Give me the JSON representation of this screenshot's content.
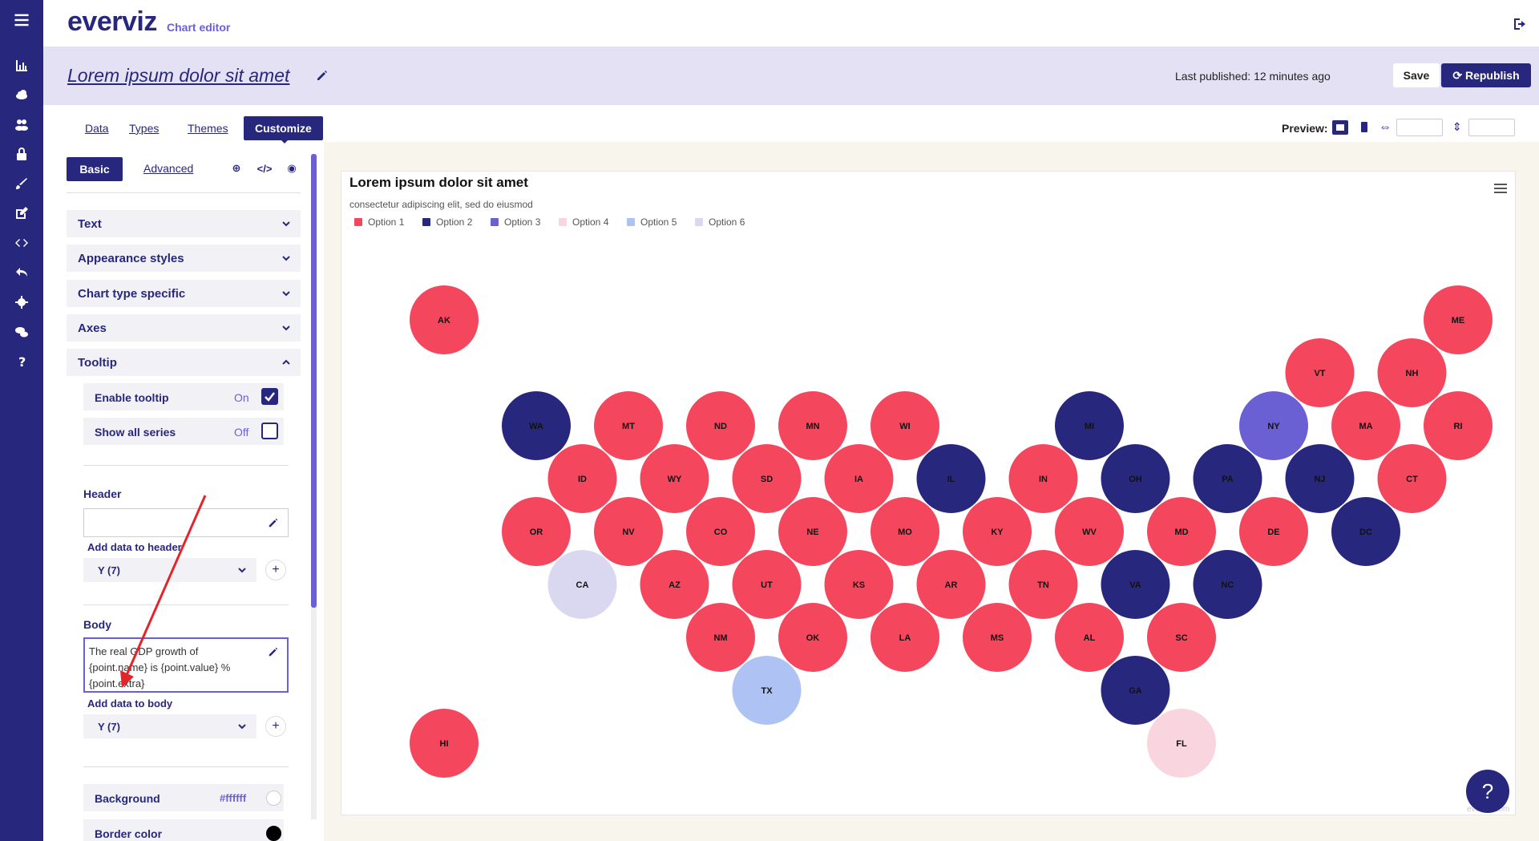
{
  "app": {
    "logo": "everviz",
    "logo_sub": "Chart editor"
  },
  "rail": {
    "icons": [
      "menu-icon",
      "chart-icon",
      "cloud-icon",
      "users-icon",
      "lock-icon",
      "brush-icon",
      "edit-icon",
      "code-icon",
      "undo-icon",
      "gear-icon",
      "chat-icon",
      "question-icon"
    ]
  },
  "titlebar": {
    "title": "Lorem ipsum dolor sit amet",
    "last_published": "Last published: 12 minutes ago",
    "save": "Save",
    "republish": "Republish"
  },
  "tabs": [
    "Data",
    "Types",
    "Themes",
    "Customize"
  ],
  "preview": {
    "label": "Preview:"
  },
  "panel": {
    "basic": "Basic",
    "advanced": "Advanced",
    "sections": [
      "Text",
      "Appearance styles",
      "Chart type specific",
      "Axes",
      "Tooltip"
    ],
    "enable_tooltip": {
      "label": "Enable tooltip",
      "state": "On"
    },
    "show_all_series": {
      "label": "Show all series",
      "state": "Off"
    },
    "header_label": "Header",
    "add_data_header": "Add data to header",
    "header_select": "Y (7)",
    "body_label": "Body",
    "body_text": "The real GDP growth of {point.name} is {point.value} % {point.extra}",
    "add_data_body": "Add data to body",
    "body_select": "Y (7)",
    "background": {
      "label": "Background",
      "value": "#ffffff"
    },
    "border_color": {
      "label": "Border color"
    }
  },
  "chart_data": {
    "type": "tilemap",
    "title": "Lorem ipsum dolor sit amet",
    "subtitle": "consectetur adipiscing elit, sed do eiusmod",
    "legend": [
      {
        "name": "Option 1",
        "color": "#f4475e"
      },
      {
        "name": "Option 2",
        "color": "#28277e"
      },
      {
        "name": "Option 3",
        "color": "#6b5fd4"
      },
      {
        "name": "Option 4",
        "color": "#f9d5e0"
      },
      {
        "name": "Option 5",
        "color": "#aec3f4"
      },
      {
        "name": "Option 6",
        "color": "#dad8f0"
      }
    ],
    "credit": "everviz.com",
    "tiles": [
      {
        "s": "AK",
        "col": 0,
        "row": 0,
        "o": 1
      },
      {
        "s": "ME",
        "col": 22,
        "row": 0,
        "o": 1
      },
      {
        "s": "VT",
        "col": 19,
        "row": 1,
        "o": 1
      },
      {
        "s": "NH",
        "col": 21,
        "row": 1,
        "o": 1
      },
      {
        "s": "WA",
        "col": 2,
        "row": 2,
        "o": 2
      },
      {
        "s": "MT",
        "col": 4,
        "row": 2,
        "o": 1
      },
      {
        "s": "ND",
        "col": 6,
        "row": 2,
        "o": 1
      },
      {
        "s": "MN",
        "col": 8,
        "row": 2,
        "o": 1
      },
      {
        "s": "WI",
        "col": 10,
        "row": 2,
        "o": 1
      },
      {
        "s": "MI",
        "col": 14,
        "row": 2,
        "o": 2
      },
      {
        "s": "NY",
        "col": 18,
        "row": 2,
        "o": 3
      },
      {
        "s": "MA",
        "col": 20,
        "row": 2,
        "o": 1
      },
      {
        "s": "RI",
        "col": 22,
        "row": 2,
        "o": 1
      },
      {
        "s": "ID",
        "col": 3,
        "row": 3,
        "o": 1
      },
      {
        "s": "WY",
        "col": 5,
        "row": 3,
        "o": 1
      },
      {
        "s": "SD",
        "col": 7,
        "row": 3,
        "o": 1
      },
      {
        "s": "IA",
        "col": 9,
        "row": 3,
        "o": 1
      },
      {
        "s": "IL",
        "col": 11,
        "row": 3,
        "o": 2
      },
      {
        "s": "IN",
        "col": 13,
        "row": 3,
        "o": 1
      },
      {
        "s": "OH",
        "col": 15,
        "row": 3,
        "o": 2
      },
      {
        "s": "PA",
        "col": 17,
        "row": 3,
        "o": 2
      },
      {
        "s": "NJ",
        "col": 19,
        "row": 3,
        "o": 2
      },
      {
        "s": "CT",
        "col": 21,
        "row": 3,
        "o": 1
      },
      {
        "s": "OR",
        "col": 2,
        "row": 4,
        "o": 1
      },
      {
        "s": "NV",
        "col": 4,
        "row": 4,
        "o": 1
      },
      {
        "s": "CO",
        "col": 6,
        "row": 4,
        "o": 1
      },
      {
        "s": "NE",
        "col": 8,
        "row": 4,
        "o": 1
      },
      {
        "s": "MO",
        "col": 10,
        "row": 4,
        "o": 1
      },
      {
        "s": "KY",
        "col": 12,
        "row": 4,
        "o": 1
      },
      {
        "s": "WV",
        "col": 14,
        "row": 4,
        "o": 1
      },
      {
        "s": "MD",
        "col": 16,
        "row": 4,
        "o": 1
      },
      {
        "s": "DE",
        "col": 18,
        "row": 4,
        "o": 1
      },
      {
        "s": "DC",
        "col": 20,
        "row": 4,
        "o": 2
      },
      {
        "s": "CA",
        "col": 3,
        "row": 5,
        "o": 6
      },
      {
        "s": "AZ",
        "col": 5,
        "row": 5,
        "o": 1
      },
      {
        "s": "UT",
        "col": 7,
        "row": 5,
        "o": 1
      },
      {
        "s": "KS",
        "col": 9,
        "row": 5,
        "o": 1
      },
      {
        "s": "AR",
        "col": 11,
        "row": 5,
        "o": 1
      },
      {
        "s": "TN",
        "col": 13,
        "row": 5,
        "o": 1
      },
      {
        "s": "VA",
        "col": 15,
        "row": 5,
        "o": 2
      },
      {
        "s": "NC",
        "col": 17,
        "row": 5,
        "o": 2
      },
      {
        "s": "NM",
        "col": 6,
        "row": 6,
        "o": 1
      },
      {
        "s": "OK",
        "col": 8,
        "row": 6,
        "o": 1
      },
      {
        "s": "LA",
        "col": 10,
        "row": 6,
        "o": 1
      },
      {
        "s": "MS",
        "col": 12,
        "row": 6,
        "o": 1
      },
      {
        "s": "AL",
        "col": 14,
        "row": 6,
        "o": 1
      },
      {
        "s": "SC",
        "col": 16,
        "row": 6,
        "o": 1
      },
      {
        "s": "TX",
        "col": 7,
        "row": 7,
        "o": 5
      },
      {
        "s": "GA",
        "col": 15,
        "row": 7,
        "o": 2
      },
      {
        "s": "HI",
        "col": 0,
        "row": 8,
        "o": 1
      },
      {
        "s": "FL",
        "col": 16,
        "row": 8,
        "o": 4
      }
    ]
  }
}
